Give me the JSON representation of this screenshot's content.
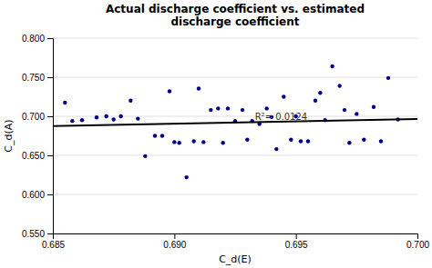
{
  "chart_data": {
    "type": "scatter",
    "title": "Actual discharge coefficient vs. estimated\ndischarge coefficient",
    "xlabel": "C_d(E)",
    "ylabel": "C_d(A)",
    "annotations": [
      "R²= 0.0124"
    ],
    "xlim": [
      0.685,
      0.7
    ],
    "ylim": [
      0.55,
      0.8
    ],
    "xticks": [
      0.685,
      {
        "value": 0.69,
        "label": "0.690"
      },
      0.695,
      {
        "value": 0.7,
        "label": "0.700"
      }
    ],
    "yticks": [
      {
        "value": 0.55,
        "label": "0.550"
      },
      {
        "value": 0.6,
        "label": "0.600"
      },
      {
        "value": 0.65,
        "label": "0.650"
      },
      {
        "value": 0.7,
        "label": "0.700"
      },
      {
        "value": 0.75,
        "label": "0.750"
      },
      {
        "value": 0.8,
        "label": "0.800"
      }
    ],
    "grid": "y",
    "series": [
      {
        "type": "scatter",
        "color": "#00008B",
        "x": [
          0.6855,
          0.6858,
          0.6862,
          0.6868,
          0.6872,
          0.6875,
          0.6878,
          0.6882,
          0.6885,
          0.6888,
          0.6892,
          0.6895,
          0.6898,
          0.69,
          0.6902,
          0.6905,
          0.6908,
          0.691,
          0.6912,
          0.6915,
          0.6918,
          0.692,
          0.6922,
          0.6925,
          0.6928,
          0.693,
          0.6932,
          0.6935,
          0.6938,
          0.694,
          0.6942,
          0.6945,
          0.6948,
          0.695,
          0.6952,
          0.6955,
          0.6958,
          0.696,
          0.6962,
          0.6965,
          0.6968,
          0.697,
          0.6972,
          0.6975,
          0.6978,
          0.6982,
          0.6985,
          0.6988,
          0.6992
        ],
        "values": [
          0.7175,
          0.694,
          0.695,
          0.6985,
          0.7,
          0.696,
          0.7,
          0.72,
          0.697,
          0.649,
          0.675,
          0.675,
          0.732,
          0.667,
          0.666,
          0.622,
          0.668,
          0.7355,
          0.667,
          0.708,
          0.71,
          0.666,
          0.71,
          0.694,
          0.708,
          0.67,
          0.694,
          0.69,
          0.71,
          0.699,
          0.658,
          0.725,
          0.67,
          0.7,
          0.668,
          0.668,
          0.72,
          0.73,
          0.695,
          0.764,
          0.739,
          0.708,
          0.666,
          0.703,
          0.67,
          0.712,
          0.668,
          0.749,
          0.696
        ]
      },
      {
        "type": "line",
        "color": "#000000",
        "x": [
          0.685,
          0.7
        ],
        "values": [
          0.6875,
          0.6965
        ]
      }
    ]
  }
}
